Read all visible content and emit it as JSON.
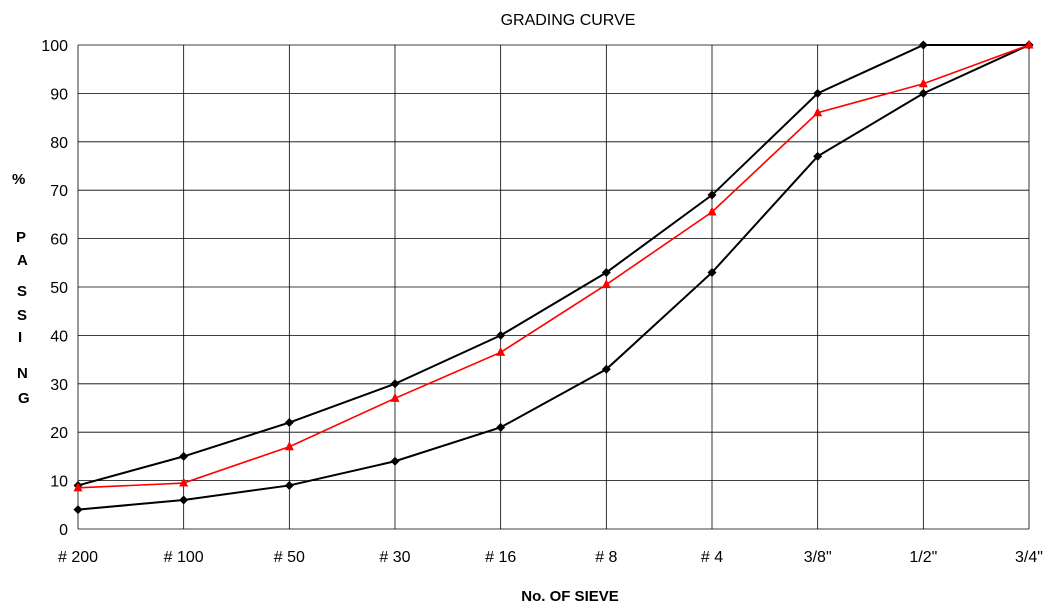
{
  "chart_data": {
    "type": "line",
    "title": "GRADING CURVE",
    "xlabel": "No. OF SIEVE",
    "ylabel_letters": [
      "%",
      "P",
      "A",
      "S",
      "S",
      "I",
      "N",
      "G"
    ],
    "categories": [
      "# 200",
      "# 100",
      "# 50",
      "# 30",
      "# 16",
      "# 8",
      "# 4",
      "3/8\"",
      "1/2\"",
      "3/4\""
    ],
    "ylim": [
      0,
      100
    ],
    "yticks": [
      0,
      10,
      20,
      30,
      40,
      50,
      60,
      70,
      80,
      90,
      100
    ],
    "grid": true,
    "series": [
      {
        "values": [
          9,
          15,
          22,
          30,
          40,
          53,
          69,
          90,
          100,
          100
        ],
        "color": "#000000",
        "marker": "diamond"
      },
      {
        "values": [
          4,
          6,
          9,
          14,
          21,
          33,
          53,
          77,
          90,
          100
        ],
        "color": "#000000",
        "marker": "diamond"
      },
      {
        "values": [
          8.5,
          9.5,
          17,
          27,
          36.5,
          50.5,
          65.5,
          86,
          92,
          100
        ],
        "color": "#ff0000",
        "marker": "triangle"
      }
    ]
  }
}
